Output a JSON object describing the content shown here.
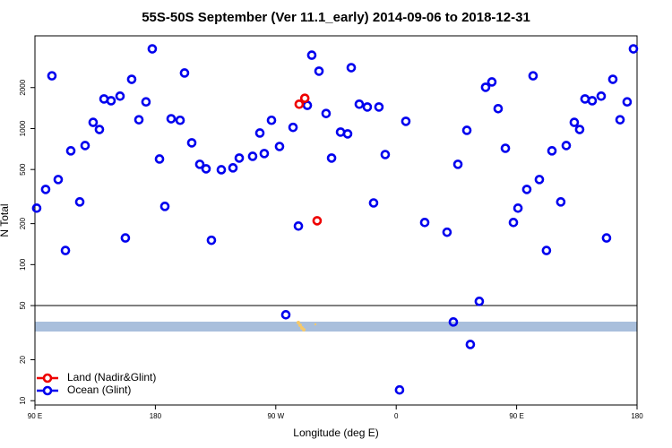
{
  "chart_data": {
    "type": "scatter",
    "title": "55S-50S September (Ver 11.1_early)   2014-09-06 to 2018-12-31",
    "xlabel": "Longitude (deg E)",
    "ylabel": "N Total",
    "log_y": true,
    "legend": "lower left",
    "xlim": [
      90,
      540
    ],
    "xticks": [
      {
        "value": 90,
        "label": "90 E"
      },
      {
        "value": 180,
        "label": "180"
      },
      {
        "value": 270,
        "label": "90 W"
      },
      {
        "value": 360,
        "label": "0"
      },
      {
        "value": 450,
        "label": "90 E"
      },
      {
        "value": 540,
        "label": "180"
      }
    ],
    "ylim": [
      9.3,
      4800
    ],
    "yticks": [
      10,
      20,
      50,
      100,
      200,
      500,
      1000,
      2000
    ],
    "hline": 50,
    "series": [
      {
        "name": "Land (Nadir&Glint)",
        "color": "#ee0000",
        "x": [
          287.5,
          291.7,
          300.9
        ],
        "values": [
          1510,
          1670,
          210
        ]
      },
      {
        "name": "Ocean (Glint)",
        "color": "#0000ee",
        "x": [
          91.3,
          98,
          102.7,
          107.4,
          112.8,
          116.8,
          123.5,
          127.5,
          133.5,
          138.2,
          141.6,
          146.9,
          153.6,
          157.6,
          162.3,
          167.7,
          173,
          177.7,
          183.1,
          187.1,
          191.8,
          198.5,
          201.8,
          207.2,
          213.2,
          217.9,
          221.9,
          229.3,
          238,
          242.7,
          252.7,
          261.4,
          258.1,
          266.8,
          272.8,
          277.5,
          282.9,
          286.9,
          293.6,
          296.9,
          302.3,
          307.6,
          311.7,
          318.4,
          323.7,
          326.4,
          332.4,
          338.4,
          343.1,
          347.1,
          351.8,
          362.5,
          367.2,
          381.3,
          398,
          402.7,
          406.1,
          412.8,
          415.4,
          422.1,
          426.8,
          431.5,
          436.2,
          441.6,
          447.6,
          451,
          457.6,
          462.3,
          467,
          472.3,
          476.4,
          483,
          487.1,
          493.1,
          497.1,
          501.1,
          506.5,
          513.2,
          517.2,
          521.9,
          527.3,
          532.6,
          537.3
        ],
        "values": [
          260,
          357,
          2440,
          422,
          127,
          686,
          289,
          750,
          1110,
          984,
          1650,
          1600,
          1730,
          157,
          2300,
          1160,
          1570,
          3850,
          597,
          268,
          1180,
          1150,
          2560,
          785,
          546,
          506,
          151,
          498,
          514,
          607,
          625,
          655,
          927,
          1150,
          738,
          42.8,
          1020,
          192,
          1480,
          3460,
          2640,
          1290,
          607,
          942,
          914,
          2800,
          1510,
          1440,
          284,
          1440,
          644,
          12,
          1130,
          204,
          173,
          37.9,
          546,
          970,
          25.9,
          53.7,
          2010,
          2200,
          1400,
          716,
          204,
          260,
          357,
          2440,
          422,
          127,
          686,
          289,
          750,
          1110,
          984,
          1650,
          1600,
          1730,
          157,
          2300,
          1160,
          1570,
          3850
        ]
      }
    ]
  }
}
